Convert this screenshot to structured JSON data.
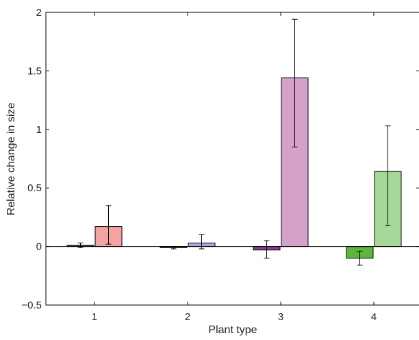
{
  "chart_data": {
    "type": "bar",
    "title": "",
    "xlabel": "Plant type",
    "ylabel": "Relative change in size",
    "ylim": [
      -0.5,
      2
    ],
    "yticks": [
      -0.5,
      0,
      0.5,
      1,
      1.5,
      2
    ],
    "ytick_labels": [
      "−0.5",
      "0",
      "0.5",
      "1",
      "1.5",
      "2"
    ],
    "categories": [
      "1",
      "2",
      "3",
      "4"
    ],
    "grid": false,
    "legend": "none",
    "bars": [
      {
        "category": "1",
        "position": "left",
        "value": 0.01,
        "err_low": -0.01,
        "err_high": 0.03,
        "color": "#3b3b3b"
      },
      {
        "category": "1",
        "position": "right",
        "value": 0.17,
        "err_low": 0.02,
        "err_high": 0.35,
        "color": "#f4a3a3"
      },
      {
        "category": "2",
        "position": "left",
        "value": -0.01,
        "err_low": -0.02,
        "err_high": 0.0,
        "color": "#3b3b3b"
      },
      {
        "category": "2",
        "position": "right",
        "value": 0.03,
        "err_low": -0.02,
        "err_high": 0.1,
        "color": "#a8a8e8"
      },
      {
        "category": "3",
        "position": "left",
        "value": -0.03,
        "err_low": -0.1,
        "err_high": 0.05,
        "color": "#8e3c9e"
      },
      {
        "category": "3",
        "position": "right",
        "value": 1.44,
        "err_low": 0.85,
        "err_high": 1.94,
        "color": "#d4a1ca"
      },
      {
        "category": "4",
        "position": "left",
        "value": -0.1,
        "err_low": -0.16,
        "err_high": -0.04,
        "color": "#5db53a"
      },
      {
        "category": "4",
        "position": "right",
        "value": 0.64,
        "err_low": 0.18,
        "err_high": 1.03,
        "color": "#a6d89a"
      }
    ]
  }
}
